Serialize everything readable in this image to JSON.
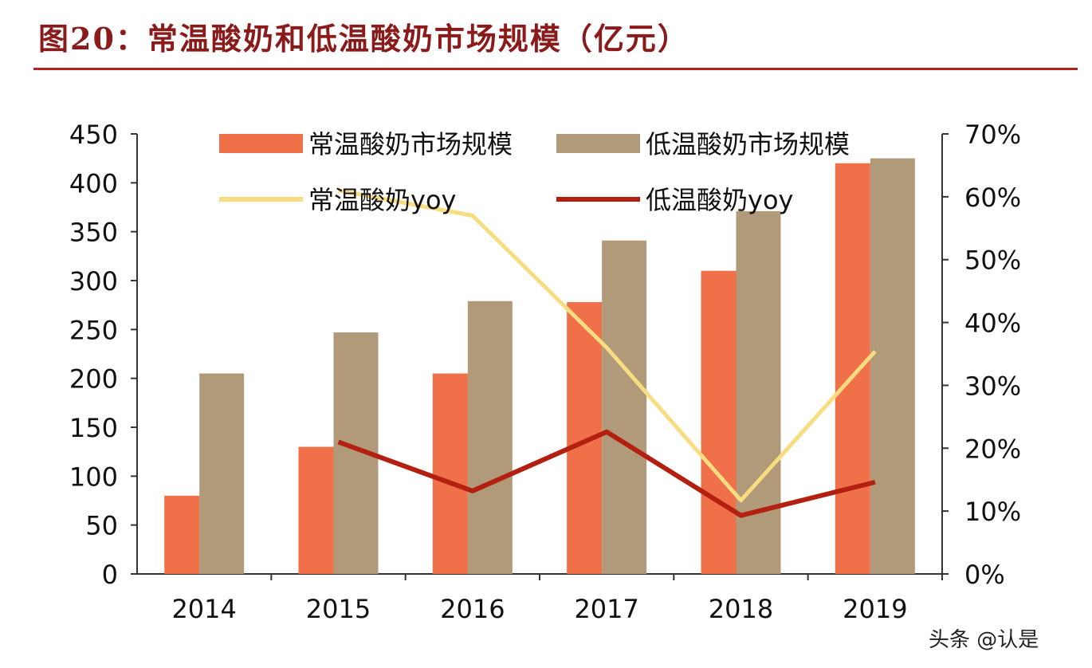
{
  "title": "图20：常温酸奶和低温酸奶市场规模（亿元）",
  "watermark": "头条 @认是",
  "chart_data": {
    "type": "bar+line",
    "categories": [
      "2014",
      "2015",
      "2016",
      "2017",
      "2018",
      "2019"
    ],
    "ylim": [
      0,
      450
    ],
    "y_ticks": [
      "0",
      "50",
      "100",
      "150",
      "200",
      "250",
      "300",
      "350",
      "400",
      "450"
    ],
    "y2lim": [
      0,
      70
    ],
    "y2_ticks": [
      "0%",
      "10%",
      "20%",
      "30%",
      "40%",
      "50%",
      "60%",
      "70%"
    ],
    "legend_position": "top",
    "series": [
      {
        "name": "常温酸奶市场规模",
        "type": "bar",
        "axis": "left",
        "color": "#f0704a",
        "values": [
          80,
          130,
          205,
          278,
          310,
          420
        ]
      },
      {
        "name": "低温酸奶市场规模",
        "type": "bar",
        "axis": "left",
        "color": "#b09a7a",
        "values": [
          205,
          247,
          279,
          341,
          371,
          425
        ]
      },
      {
        "name": "常温酸奶yoy",
        "type": "line",
        "axis": "right",
        "color": "#f7dc80",
        "values": [
          null,
          61,
          57,
          36,
          11.7,
          35.4
        ]
      },
      {
        "name": "低温酸奶yoy",
        "type": "line",
        "axis": "right",
        "color": "#b32010",
        "values": [
          null,
          21,
          13.2,
          22.6,
          9.3,
          14.6
        ]
      }
    ]
  }
}
